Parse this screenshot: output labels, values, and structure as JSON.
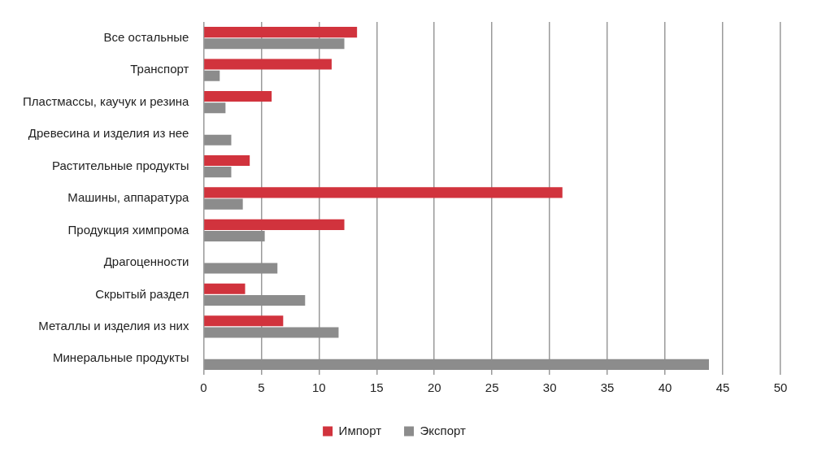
{
  "chart_data": {
    "type": "bar",
    "orientation": "horizontal",
    "categories": [
      "Все остальные",
      "Транспорт",
      "Пластмассы, каучук и резина",
      "Древесина и изделия из нее",
      "Растительные продукты",
      "Машины, аппаратура",
      "Продукция химпрома",
      "Драгоценности",
      "Скрытый раздел",
      "Металлы и изделия из них",
      "Минеральные продукты"
    ],
    "series": [
      {
        "name": "Импорт",
        "color": "#d1333d",
        "values": [
          13.3,
          11.1,
          5.9,
          null,
          4.0,
          31.1,
          12.2,
          null,
          3.6,
          6.9,
          null
        ]
      },
      {
        "name": "Экспорт",
        "color": "#8c8c8c",
        "values": [
          12.2,
          1.4,
          1.9,
          2.4,
          2.4,
          3.4,
          5.3,
          6.4,
          8.8,
          11.7,
          43.8
        ]
      }
    ],
    "xlim": [
      0,
      50
    ],
    "xticks": [
      0,
      5,
      10,
      15,
      20,
      25,
      30,
      35,
      40,
      45,
      50
    ],
    "grid": true,
    "legend": "bottom"
  }
}
